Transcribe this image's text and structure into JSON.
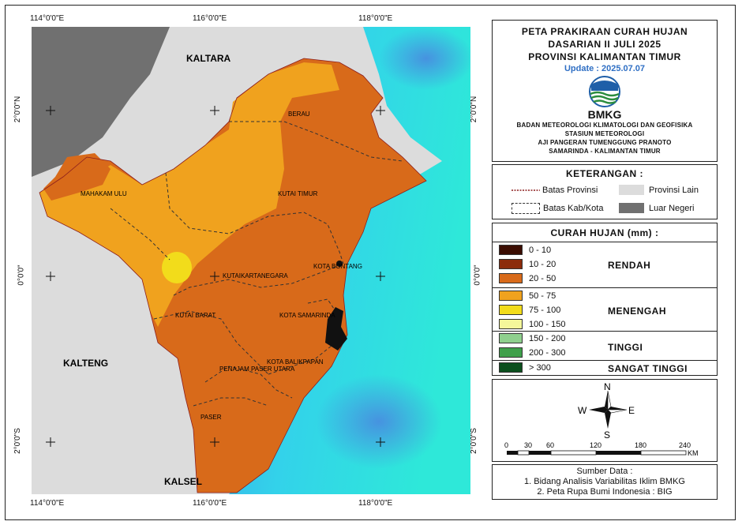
{
  "map": {
    "axis_top": [
      "114°0'0\"E",
      "116°0'0\"E",
      "118°0'0\"E"
    ],
    "axis_bottom": [
      "114°0'0\"E",
      "116°0'0\"E",
      "118°0'0\"E"
    ],
    "axis_left": [
      "2°0'0\"N",
      "0°0'0\"",
      "2°0'0\"S"
    ],
    "axis_right": [
      "2°0'0\"N",
      "0°0'0\"",
      "2°0'0\"S"
    ],
    "neighbors": {
      "kaltara": "KALTARA",
      "kalteng": "KALTENG",
      "kalsel": "KALSEL"
    },
    "regions": {
      "berau": "BERAU",
      "mahakam_ulu": "MAHAKAM ULU",
      "kutai_timur": "KUTAI TIMUR",
      "kutai_kartanegara": "KUTAIKARTANEGARA",
      "kota_bontang": "KOTA BONTANG",
      "kutai_barat": "KUTAI BARAT",
      "kota_samarinda": "KOTA SAMARINDA",
      "kota_balikpapan": "KOTA BALIKPAPAN",
      "penajam": "PENAJAM PASER UTARA",
      "paser": "PASER"
    }
  },
  "title": {
    "line1": "PETA PRAKIRAAN CURAH HUJAN",
    "line2": "DASARIAN II JULI 2025",
    "line3": "PROVINSI KALIMANTAN TIMUR",
    "update": "Update : 2025.07.07",
    "logo_text": "BMKG",
    "agency1": "BADAN METEOROLOGI KLIMATOLOGI DAN GEOFISIKA",
    "agency2": "STASIUN METEOROLOGI",
    "agency3": "AJI PANGERAN TUMENGGUNG PRANOTO",
    "agency4": "SAMARINDA - KALIMANTAN TIMUR"
  },
  "keterangan": {
    "title": "KETERANGAN :",
    "batas_provinsi": "Batas Provinsi",
    "batas_kab": "Batas Kab/Kota",
    "provinsi_lain": "Provinsi Lain",
    "luar_negeri": "Luar Negeri"
  },
  "rainfall": {
    "title": "CURAH HUJAN (mm) :",
    "classes": [
      {
        "range": "0 - 10",
        "color": "#3b0d02"
      },
      {
        "range": "10 - 20",
        "color": "#8c2c0b"
      },
      {
        "range": "20 - 50",
        "color": "#d86a1a"
      },
      {
        "range": "50 - 75",
        "color": "#f0a21e"
      },
      {
        "range": "75 - 100",
        "color": "#f2dc1b"
      },
      {
        "range": "100 - 150",
        "color": "#f4f79a"
      },
      {
        "range": "150 - 200",
        "color": "#8fd08e"
      },
      {
        "range": "200 - 300",
        "color": "#3fa04b"
      },
      {
        "range": "> 300",
        "color": "#0b4f1d"
      }
    ],
    "categories": {
      "rendah": "RENDAH",
      "menengah": "MENENGAH",
      "tinggi": "TINGGI",
      "sangat_tinggi": "SANGAT TINGGI"
    }
  },
  "compass": {
    "n": "N",
    "s": "S",
    "e": "E",
    "w": "W"
  },
  "scale": {
    "ticks": [
      "0",
      "30",
      "60",
      "120",
      "180",
      "240"
    ],
    "unit": "KM"
  },
  "source": {
    "title": "Sumber Data :",
    "item1": "1. Bidang Analisis Variabilitas Iklim BMKG",
    "item2": "2. Peta Rupa Bumi Indonesia : BIG"
  }
}
